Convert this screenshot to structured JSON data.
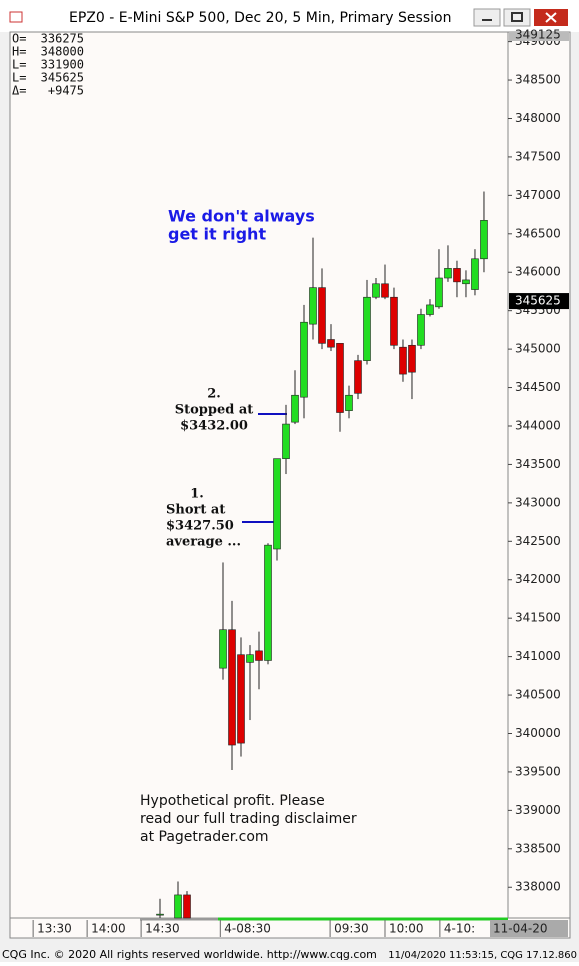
{
  "window": {
    "title": "EPZ0 - E-Mini S&P 500, Dec 20, 5 Min, Primary Session"
  },
  "stats": [
    {
      "label": "O=",
      "value": 336275
    },
    {
      "label": "H=",
      "value": 348000
    },
    {
      "label": "L=",
      "value": 331900
    },
    {
      "label": "L=",
      "value": 345625
    },
    {
      "label": "Δ=",
      "value": "+9475"
    }
  ],
  "chart_data": {
    "type": "candlestick",
    "x": [
      0,
      2,
      3,
      7,
      8,
      9,
      10,
      11,
      12,
      13,
      14,
      15,
      16,
      17,
      18,
      19,
      20,
      21,
      22,
      23,
      24,
      25,
      26,
      27,
      28,
      29,
      30,
      31,
      32,
      33,
      34,
      35,
      36
    ],
    "open": [
      337650,
      337600,
      337900,
      340850,
      341350,
      341025,
      340925,
      341075,
      340950,
      342400,
      343575,
      344050,
      344375,
      345325,
      345800,
      345125,
      345075,
      344200,
      344850,
      344850,
      345675,
      345850,
      345675,
      345025,
      345050,
      345050,
      345450,
      345550,
      345925,
      346050,
      345850,
      345775,
      346175
    ],
    "high": [
      337850,
      338075,
      337950,
      342225,
      341725,
      341250,
      341150,
      341325,
      342475,
      343575,
      344275,
      344725,
      345575,
      346450,
      346050,
      345325,
      345075,
      344525,
      344925,
      345900,
      345925,
      346100,
      345800,
      345125,
      345125,
      345525,
      345650,
      346300,
      346350,
      346150,
      346025,
      346300,
      347050
    ],
    "low": [
      337600,
      337600,
      337600,
      340700,
      339525,
      339700,
      340175,
      340575,
      340900,
      342250,
      343375,
      344025,
      344100,
      345125,
      345000,
      344975,
      343925,
      344100,
      344350,
      344800,
      345650,
      345650,
      345000,
      344575,
      344350,
      345000,
      345425,
      345525,
      345875,
      345675,
      345675,
      345700,
      346000
    ],
    "close": [
      337650,
      337900,
      337600,
      341350,
      339850,
      339875,
      341025,
      340950,
      342450,
      343575,
      344025,
      344400,
      345350,
      345800,
      345075,
      345025,
      344175,
      344400,
      344425,
      345675,
      345850,
      345675,
      345050,
      344675,
      344700,
      345450,
      345575,
      345925,
      346050,
      345875,
      345900,
      346175,
      346675
    ],
    "up_color": "#22dd22",
    "down_color": "#dd0000",
    "xlim": [
      -16.67,
      38.67
    ],
    "xticks": [
      {
        "value": -14.1,
        "label": "13:30"
      },
      {
        "value": -8.1,
        "label": "14:00"
      },
      {
        "value": -2.1,
        "label": "14:30"
      },
      {
        "value": 6.7,
        "label": "4-08:30"
      },
      {
        "value": 18.9,
        "label": "09:30"
      },
      {
        "value": 25,
        "label": "10:00"
      },
      {
        "value": 31.1,
        "label": "4-10:"
      }
    ],
    "date_label": "11-04-20",
    "ylim": [
      337600,
      349125
    ],
    "yticks": [
      338000,
      338500,
      339000,
      339500,
      340000,
      340500,
      341000,
      341500,
      342000,
      342500,
      343000,
      343500,
      344000,
      344500,
      345000,
      345500,
      346000,
      346500,
      347000,
      347500,
      348000,
      348500,
      349000
    ],
    "top_price": 349125,
    "last_price": 345625,
    "annotations": {
      "headline": [
        "We don't always",
        "get it right"
      ],
      "stop": [
        "2.",
        "Stopped at",
        "$3432.00"
      ],
      "short": [
        "1.",
        "Short at",
        "$3427.50",
        "average ..."
      ],
      "disclaimer": [
        "Hypothetical profit. Please",
        "read our full trading disclaimer",
        "at Pagetrader.com"
      ]
    }
  },
  "status": {
    "left": "CQG Inc. © 2020 All rights reserved worldwide. http://www.cqg.com",
    "right": "11/04/2020 11:53:15, CQG 17.12.860"
  }
}
